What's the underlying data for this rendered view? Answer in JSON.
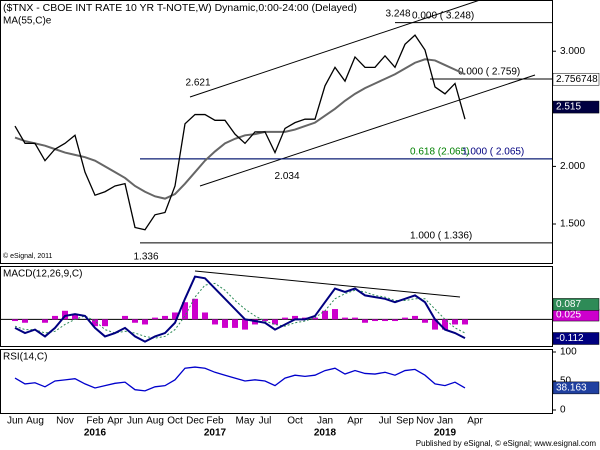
{
  "chart_data": [
    {
      "type": "line",
      "title": "($TNX - CBOE INT RATE 10 YR T-NOTE,W) Dynamic,0:00-24:00 (Delayed)",
      "credit": "© eSignal, 2011",
      "categories": [
        "Jun",
        null,
        "Aug",
        null,
        null,
        "Nov",
        null,
        null,
        "Feb",
        null,
        "Apr",
        null,
        "Jun",
        null,
        "Aug",
        null,
        "Oct",
        null,
        "Dec",
        null,
        "Feb",
        null,
        null,
        "May",
        null,
        "Jul",
        null,
        null,
        "Oct",
        null,
        null,
        "Jan",
        null,
        null,
        "Apr",
        null,
        null,
        "Jul",
        null,
        "Sep",
        null,
        "Nov",
        null,
        "Jan",
        null,
        null,
        "Apr"
      ],
      "years": [
        null,
        null,
        null,
        null,
        null,
        null,
        null,
        null,
        "2016",
        null,
        null,
        null,
        null,
        null,
        null,
        null,
        null,
        null,
        null,
        null,
        "2017",
        null,
        null,
        null,
        null,
        null,
        null,
        null,
        null,
        null,
        null,
        "2018",
        null,
        null,
        null,
        null,
        null,
        null,
        null,
        null,
        null,
        null,
        null,
        "2019",
        null,
        null,
        null
      ],
      "ylim": [
        1.17,
        3.41
      ],
      "yticks": [
        {
          "value": 1.5,
          "label": "1.500"
        },
        {
          "value": 2,
          "label": "2.000"
        },
        {
          "value": 2.5,
          "label": "2.500"
        },
        {
          "value": 3,
          "label": "3.000"
        }
      ],
      "series": [
        {
          "name": "MA(55,C)e",
          "color": "#666666",
          "values": [
            2.25,
            2.22,
            2.2,
            2.18,
            2.15,
            2.12,
            2.1,
            2.08,
            2.05,
            2.0,
            1.95,
            1.9,
            1.83,
            1.78,
            1.74,
            1.72,
            1.76,
            1.85,
            1.95,
            2.05,
            2.13,
            2.2,
            2.24,
            2.27,
            2.28,
            2.3,
            2.3,
            2.3,
            2.32,
            2.35,
            2.38,
            2.44,
            2.5,
            2.57,
            2.63,
            2.68,
            2.72,
            2.76,
            2.8,
            2.85,
            2.9,
            2.93,
            2.92,
            2.88,
            2.84,
            2.8,
            null
          ]
        },
        {
          "color": "#000000",
          "values": [
            2.35,
            2.2,
            2.2,
            2.05,
            2.15,
            2.2,
            2.27,
            1.95,
            1.75,
            1.78,
            1.83,
            1.85,
            1.47,
            1.45,
            1.58,
            1.6,
            1.83,
            2.37,
            2.45,
            2.45,
            2.4,
            2.4,
            2.28,
            2.2,
            2.3,
            2.3,
            2.12,
            2.33,
            2.38,
            2.41,
            2.41,
            2.7,
            2.86,
            2.74,
            2.95,
            2.86,
            2.86,
            2.96,
            2.86,
            3.06,
            3.14,
            3.01,
            2.69,
            2.63,
            2.72,
            2.41,
            null
          ]
        }
      ],
      "levels": [
        {
          "value": 3.248,
          "label": "0.000 ( 3.248)",
          "color": "#000000"
        },
        {
          "value": 2.759,
          "label": "0.000 ( 2.759)",
          "color": "#000000"
        },
        {
          "value": 2.065,
          "label": "0.618 (2.065)",
          "color": "#008000"
        },
        {
          "value": 2.065,
          "label": "1.000 ( 2.065)",
          "color": "#000080"
        },
        {
          "value": 1.336,
          "label": "1.000 ( 1.336)",
          "color": "#000000"
        }
      ],
      "annotations": [
        2.621,
        3.248,
        2.034,
        1.336
      ],
      "markers": [
        {
          "value": 2.756748,
          "color": "#ffffff",
          "text_color": "#000000"
        },
        {
          "value": 2.515,
          "color": "#000040",
          "text_color": "#ffffff"
        }
      ]
    },
    {
      "type": "macd",
      "legend": "MACD(12,26,9,C)",
      "ylim": [
        -0.15,
        0.3
      ],
      "zero": 0,
      "series": [
        {
          "style": "bar",
          "color": "#cc00cc",
          "values": [
            -0.01,
            -0.02,
            0,
            -0.02,
            0.02,
            0.05,
            0.03,
            0,
            -0.04,
            -0.04,
            0,
            0.02,
            -0.02,
            -0.03,
            0.01,
            0.02,
            0.04,
            0.1,
            0.12,
            0.04,
            -0.03,
            -0.05,
            -0.05,
            -0.06,
            -0.03,
            -0.01,
            -0.03,
            0.01,
            0.02,
            0.01,
            0.01,
            0.05,
            0.06,
            0.01,
            0.01,
            -0.02,
            -0.01,
            -0.01,
            -0.01,
            0.01,
            0.02,
            -0.02,
            -0.06,
            -0.06,
            -0.03,
            -0.03,
            null
          ]
        },
        {
          "style": "dotted",
          "color": "#2e8b57",
          "values": [
            -0.04,
            -0.06,
            -0.06,
            -0.08,
            -0.07,
            -0.03,
            0.0,
            0.02,
            -0.01,
            -0.06,
            -0.08,
            -0.07,
            -0.08,
            -0.1,
            -0.11,
            -0.1,
            -0.06,
            0.02,
            0.13,
            0.2,
            0.21,
            0.17,
            0.11,
            0.06,
            0.02,
            -0.01,
            -0.03,
            -0.04,
            -0.02,
            -0.01,
            0.01,
            0.05,
            0.12,
            0.15,
            0.17,
            0.16,
            0.14,
            0.13,
            0.11,
            0.11,
            0.12,
            0.12,
            0.06,
            0.0,
            -0.05,
            -0.08,
            null
          ]
        },
        {
          "style": "line",
          "color": "#000080",
          "values": [
            -0.05,
            -0.08,
            -0.06,
            -0.1,
            -0.05,
            0.02,
            0.03,
            0.02,
            -0.05,
            -0.1,
            -0.08,
            -0.05,
            -0.1,
            -0.13,
            -0.1,
            -0.08,
            -0.02,
            0.12,
            0.25,
            0.24,
            0.18,
            0.12,
            0.06,
            0.0,
            -0.01,
            -0.02,
            -0.06,
            -0.03,
            0.0,
            0.0,
            0.02,
            0.1,
            0.18,
            0.16,
            0.18,
            0.14,
            0.13,
            0.12,
            0.1,
            0.12,
            0.14,
            0.1,
            0.0,
            -0.06,
            -0.08,
            -0.11,
            null
          ]
        }
      ],
      "markers": [
        {
          "value": 0.025,
          "color": "#cc00cc",
          "text_color": "#ffffff"
        },
        {
          "value": 0.087,
          "color": "#2e8b57",
          "text_color": "#ffffff"
        },
        {
          "value": -0.112,
          "color": "#000080",
          "text_color": "#ffffff"
        }
      ]
    },
    {
      "type": "line",
      "legend": "RSI(14,C)",
      "ylim": [
        0,
        100
      ],
      "yticks": [
        0,
        50,
        100
      ],
      "series": [
        {
          "color": "#0000cc",
          "values": [
            55,
            45,
            47,
            40,
            50,
            52,
            54,
            45,
            38,
            42,
            46,
            48,
            35,
            33,
            40,
            42,
            52,
            72,
            74,
            72,
            65,
            60,
            55,
            50,
            52,
            50,
            42,
            55,
            60,
            58,
            60,
            68,
            72,
            62,
            68,
            63,
            62,
            65,
            60,
            68,
            70,
            60,
            45,
            42,
            48,
            38,
            null
          ]
        }
      ],
      "markers": [
        {
          "value": 38.163,
          "color": "#2040a0",
          "text_color": "#ffffff"
        }
      ]
    }
  ],
  "footer": "Published by eSignal, © eSignal; www.esignal.com"
}
